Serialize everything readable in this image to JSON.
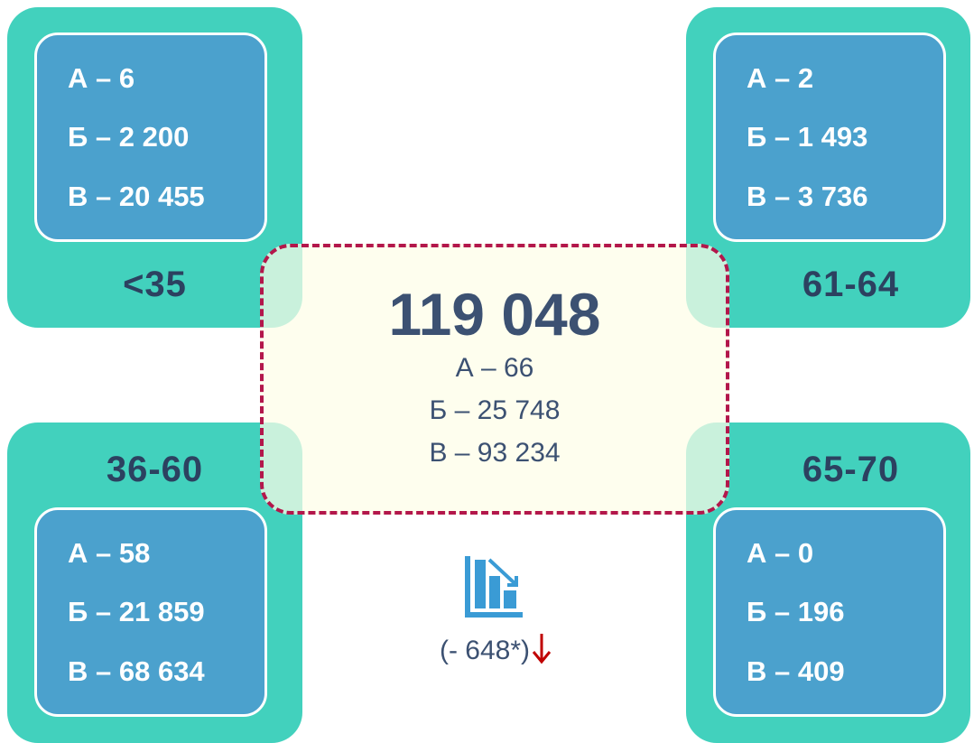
{
  "panels": [
    {
      "label": "<35",
      "items": [
        "А – 6",
        "Б – 2 200",
        "В – 20 455"
      ]
    },
    {
      "label": "61-64",
      "items": [
        "А – 2",
        "Б – 1 493",
        "В – 3 736"
      ]
    },
    {
      "label": "36-60",
      "items": [
        "А – 58",
        "Б – 21 859",
        "В – 68 634"
      ]
    },
    {
      "label": "65-70",
      "items": [
        "А – 0",
        "Б – 196",
        "В – 409"
      ]
    }
  ],
  "center": {
    "total": "119 048",
    "items": [
      "А – 66",
      "Б – 25 748",
      "В – 93 234"
    ]
  },
  "change": "(- 648*)"
}
